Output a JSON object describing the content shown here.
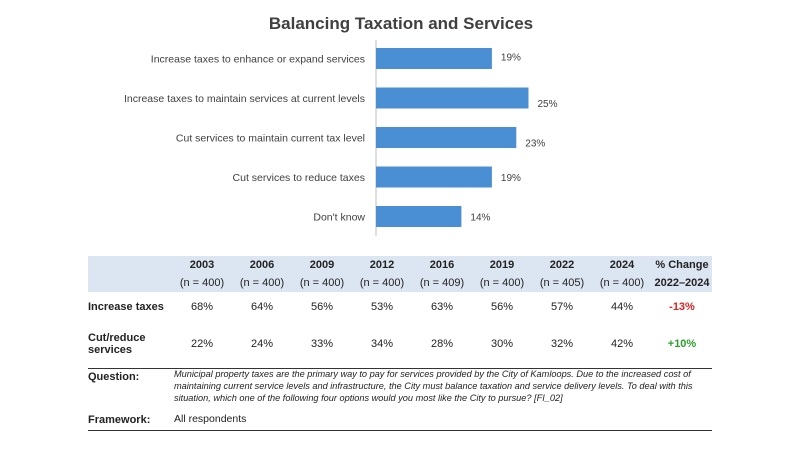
{
  "chart_data": {
    "type": "bar",
    "orientation": "horizontal",
    "title": "Balancing Taxation and Services",
    "categories": [
      "Increase taxes to enhance or expand services",
      "Increase taxes to maintain services at current levels",
      "Cut services to maintain current tax level",
      "Cut services to reduce taxes",
      "Don't know"
    ],
    "values": [
      19,
      25,
      23,
      19,
      14
    ],
    "value_labels": [
      "19%",
      "25%",
      "23%",
      "19%",
      "14%"
    ],
    "xlim": [
      0,
      50
    ],
    "grid": false,
    "bar_color": "#4a8fd4"
  },
  "table": {
    "years": [
      {
        "year": "2003",
        "n": "(n = 400)"
      },
      {
        "year": "2006",
        "n": "(n = 400)"
      },
      {
        "year": "2009",
        "n": "(n = 400)"
      },
      {
        "year": "2012",
        "n": "(n = 400)"
      },
      {
        "year": "2016",
        "n": "(n = 409)"
      },
      {
        "year": "2019",
        "n": "(n = 400)"
      },
      {
        "year": "2022",
        "n": "(n = 405)"
      },
      {
        "year": "2024",
        "n": "(n = 400)"
      }
    ],
    "change_header": "% Change",
    "change_period": "2022–2024",
    "rows": [
      {
        "label": "Increase taxes",
        "values": [
          "68%",
          "64%",
          "56%",
          "53%",
          "63%",
          "56%",
          "57%",
          "44%"
        ],
        "change": "-13%"
      },
      {
        "label_line1": "Cut/reduce",
        "label_line2": "services",
        "values": [
          "22%",
          "24%",
          "33%",
          "34%",
          "28%",
          "30%",
          "32%",
          "42%"
        ],
        "change": "+10%"
      }
    ]
  },
  "question": {
    "label": "Question:",
    "text": "Municipal property taxes are the primary way to pay for services provided by the City of Kamloops. Due to the increased cost of maintaining current service levels and infrastructure, the City must balance taxation and service delivery levels. To deal with this situation, which one of the following four options would you most like the City to pursue? [FI_02]"
  },
  "framework": {
    "label": "Framework:",
    "text": "All respondents"
  }
}
